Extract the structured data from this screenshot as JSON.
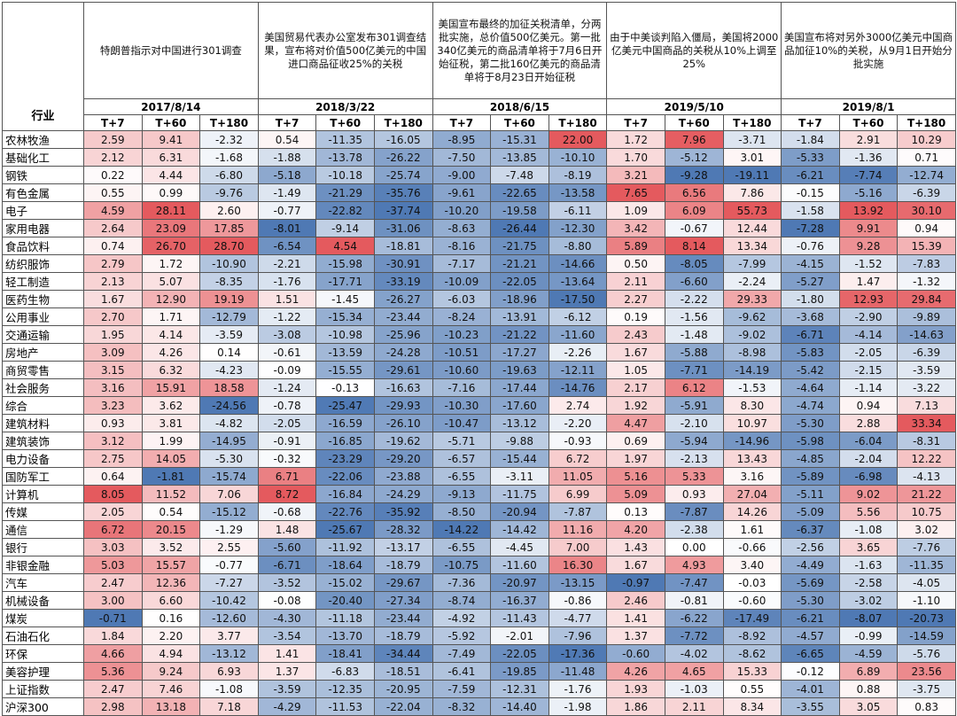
{
  "chart_data": {
    "type": "table",
    "row_header": "行业",
    "horizons": [
      "T+7",
      "T+60",
      "T+180"
    ],
    "events": [
      {
        "date": "2017/8/14",
        "description": "特朗普指示对中国进行301调查"
      },
      {
        "date": "2018/3/22",
        "description": "美国贸易代表办公室发布301调查结果，宣布将对价值500亿美元的中国进口商品征收25%的关税"
      },
      {
        "date": "2018/6/15",
        "description": "美国宣布最终的加征关税清单，分两批实施，总价值500亿美元。第一批340亿美元的商品清单将于7月6日开始征税，第二批160亿美元的商品清单将于8月23日开始征税"
      },
      {
        "date": "2019/5/10",
        "description": "由于中美谈判陷入僵局，美国将2000亿美元中国商品的关税从10%上调至25%"
      },
      {
        "date": "2019/8/1",
        "description": "美国宣布将对另外3000亿美元中国商品加征10%的关税，从9月1日开始分批实施"
      }
    ],
    "colors": {
      "positive": "#e45a5e",
      "negative": "#4f79b4",
      "neutral": "#ffffff"
    },
    "rows": [
      {
        "name": "农林牧渔",
        "values": [
          2.59,
          9.41,
          -2.32,
          0.54,
          -11.35,
          -16.05,
          -8.95,
          -15.31,
          22.0,
          1.72,
          7.96,
          -3.71,
          -1.84,
          2.91,
          10.29
        ]
      },
      {
        "name": "基础化工",
        "values": [
          2.12,
          6.31,
          -1.68,
          -1.88,
          -13.78,
          -26.22,
          -7.5,
          -13.85,
          -10.1,
          1.7,
          -5.12,
          3.01,
          -5.33,
          -1.36,
          0.71
        ]
      },
      {
        "name": "钢铁",
        "values": [
          0.22,
          4.44,
          -6.8,
          -5.18,
          -10.18,
          -25.74,
          -9.0,
          -7.48,
          -8.19,
          3.21,
          -9.28,
          -19.11,
          -6.21,
          -7.74,
          -12.74
        ]
      },
      {
        "name": "有色金属",
        "values": [
          0.55,
          0.99,
          -9.76,
          -1.49,
          -21.29,
          -35.76,
          -9.61,
          -22.65,
          -13.58,
          7.65,
          6.56,
          7.86,
          -0.15,
          -5.16,
          -6.39
        ]
      },
      {
        "name": "电子",
        "values": [
          4.59,
          28.11,
          2.6,
          -0.77,
          -22.82,
          -37.74,
          -10.2,
          -19.58,
          -6.11,
          1.09,
          6.09,
          55.73,
          -1.58,
          13.92,
          30.1
        ]
      },
      {
        "name": "家用电器",
        "values": [
          2.64,
          23.09,
          17.85,
          -8.01,
          -9.14,
          -31.06,
          -8.63,
          -26.44,
          -12.3,
          3.42,
          -0.67,
          12.44,
          -7.28,
          9.91,
          0.94
        ]
      },
      {
        "name": "食品饮料",
        "values": [
          0.74,
          26.7,
          28.7,
          -6.54,
          4.54,
          -18.81,
          -8.16,
          -21.75,
          -8.8,
          5.89,
          8.14,
          13.34,
          -0.76,
          9.28,
          15.39
        ]
      },
      {
        "name": "纺织服饰",
        "values": [
          2.79,
          1.72,
          -10.9,
          -2.21,
          -15.98,
          -30.91,
          -7.17,
          -21.21,
          -14.66,
          0.5,
          -8.05,
          -7.99,
          -4.15,
          -1.52,
          -7.83
        ]
      },
      {
        "name": "轻工制造",
        "values": [
          2.13,
          5.07,
          -8.35,
          -1.76,
          -17.71,
          -33.19,
          -10.09,
          -22.05,
          -13.64,
          2.11,
          -6.6,
          -2.24,
          -5.27,
          1.47,
          -1.32
        ]
      },
      {
        "name": "医药生物",
        "values": [
          1.67,
          12.9,
          19.19,
          1.51,
          -1.45,
          -26.27,
          -6.03,
          -18.96,
          -17.5,
          2.27,
          -2.22,
          29.33,
          -1.8,
          12.93,
          29.84
        ]
      },
      {
        "name": "公用事业",
        "values": [
          2.7,
          1.71,
          -12.79,
          -1.22,
          -15.34,
          -23.44,
          -8.24,
          -13.91,
          -6.12,
          0.19,
          -1.56,
          -9.62,
          -3.68,
          -2.9,
          -9.89
        ]
      },
      {
        "name": "交通运输",
        "values": [
          1.95,
          4.14,
          -3.59,
          -3.08,
          -10.98,
          -25.96,
          -10.23,
          -21.22,
          -11.6,
          2.43,
          -1.48,
          -9.02,
          -6.71,
          -4.14,
          -14.63
        ]
      },
      {
        "name": "房地产",
        "values": [
          3.09,
          4.26,
          0.14,
          -0.61,
          -13.59,
          -24.28,
          -10.51,
          -17.27,
          -2.26,
          1.67,
          -5.88,
          -8.98,
          -5.83,
          -2.05,
          -6.39
        ]
      },
      {
        "name": "商贸零售",
        "values": [
          3.15,
          6.32,
          -4.23,
          -0.09,
          -15.55,
          -29.61,
          -10.6,
          -19.63,
          -12.11,
          1.05,
          -7.71,
          -14.19,
          -5.42,
          -2.15,
          -3.59
        ]
      },
      {
        "name": "社会服务",
        "values": [
          3.16,
          15.91,
          18.58,
          -1.24,
          -0.13,
          -16.63,
          -7.16,
          -17.44,
          -14.76,
          2.17,
          6.12,
          -1.53,
          -4.64,
          -1.14,
          -3.22
        ]
      },
      {
        "name": "综合",
        "values": [
          3.23,
          3.62,
          -24.56,
          -0.78,
          -25.47,
          -29.93,
          -10.3,
          -17.6,
          2.74,
          1.92,
          -5.91,
          8.3,
          -4.74,
          0.94,
          7.13
        ]
      },
      {
        "name": "建筑材料",
        "values": [
          0.93,
          3.81,
          -4.82,
          -2.05,
          -16.59,
          -26.1,
          -10.47,
          -13.12,
          -2.2,
          4.47,
          -2.1,
          10.97,
          -5.3,
          2.88,
          33.34
        ]
      },
      {
        "name": "建筑装饰",
        "values": [
          3.12,
          1.99,
          -14.95,
          -0.91,
          -16.85,
          -19.62,
          -5.71,
          -9.88,
          -0.93,
          0.69,
          -5.94,
          -14.96,
          -5.98,
          -6.04,
          -8.31
        ]
      },
      {
        "name": "电力设备",
        "values": [
          2.75,
          14.05,
          -5.3,
          -0.32,
          -23.29,
          -29.2,
          -6.57,
          -15.44,
          6.72,
          1.97,
          -2.13,
          13.43,
          -4.85,
          -2.04,
          12.22
        ]
      },
      {
        "name": "国防军工",
        "values": [
          0.64,
          -1.81,
          -15.74,
          6.71,
          -22.06,
          -23.88,
          -6.55,
          -3.11,
          11.05,
          5.16,
          5.33,
          3.16,
          -5.89,
          -6.98,
          -4.13
        ]
      },
      {
        "name": "计算机",
        "values": [
          8.05,
          11.52,
          7.06,
          8.72,
          -16.84,
          -24.29,
          -9.13,
          -11.75,
          6.99,
          5.09,
          0.93,
          27.04,
          -5.11,
          9.02,
          21.22
        ]
      },
      {
        "name": "传媒",
        "values": [
          2.05,
          0.54,
          -15.12,
          -0.68,
          -22.76,
          -35.92,
          -8.5,
          -20.94,
          -7.87,
          0.13,
          -7.87,
          14.26,
          -5.09,
          5.56,
          10.75
        ]
      },
      {
        "name": "通信",
        "values": [
          6.72,
          20.15,
          -1.29,
          1.48,
          -25.67,
          -28.32,
          -14.22,
          -14.42,
          11.16,
          4.2,
          -2.38,
          1.61,
          -6.37,
          -1.08,
          3.02
        ]
      },
      {
        "name": "银行",
        "values": [
          3.03,
          3.52,
          2.55,
          -5.6,
          -11.92,
          -13.17,
          -6.55,
          -4.45,
          7.0,
          1.43,
          0.0,
          -0.66,
          -2.56,
          3.65,
          -7.76
        ]
      },
      {
        "name": "非银金融",
        "values": [
          5.03,
          15.57,
          -0.77,
          -6.71,
          -18.64,
          -18.79,
          -10.75,
          -11.6,
          16.3,
          1.67,
          4.93,
          3.4,
          -4.49,
          -1.63,
          -11.35
        ]
      },
      {
        "name": "汽车",
        "values": [
          2.47,
          12.36,
          -7.27,
          -3.52,
          -15.02,
          -29.67,
          -7.36,
          -20.97,
          -13.15,
          -0.97,
          -7.47,
          -0.03,
          -5.69,
          -2.58,
          -4.05
        ]
      },
      {
        "name": "机械设备",
        "values": [
          3.0,
          6.6,
          -10.42,
          -0.08,
          -20.4,
          -27.34,
          -8.74,
          -16.37,
          -0.86,
          2.46,
          -0.81,
          -0.6,
          -5.3,
          -3.02,
          -1.1
        ]
      },
      {
        "name": "煤炭",
        "values": [
          -0.71,
          0.16,
          -12.6,
          -4.3,
          -11.18,
          -23.44,
          -4.92,
          -11.43,
          -4.77,
          1.41,
          -6.22,
          -17.49,
          -6.21,
          -8.07,
          -20.73
        ]
      },
      {
        "name": "石油石化",
        "values": [
          1.84,
          2.2,
          3.77,
          -3.54,
          -13.7,
          -18.79,
          -5.92,
          -2.01,
          -7.96,
          1.37,
          -7.72,
          -8.92,
          -4.57,
          -0.99,
          -14.59
        ]
      },
      {
        "name": "环保",
        "values": [
          4.66,
          4.94,
          -13.12,
          1.41,
          -18.41,
          -34.44,
          -7.49,
          -22.05,
          -17.36,
          -0.6,
          -4.02,
          -8.62,
          -6.65,
          -4.59,
          -5.76
        ]
      },
      {
        "name": "美容护理",
        "values": [
          5.36,
          9.24,
          6.93,
          1.37,
          -6.83,
          -18.51,
          -6.41,
          -19.85,
          -11.48,
          4.26,
          4.65,
          15.33,
          -0.12,
          6.89,
          23.56
        ]
      },
      {
        "name": "上证指数",
        "values": [
          2.47,
          7.46,
          -1.08,
          -3.59,
          -12.35,
          -20.95,
          -7.59,
          -12.31,
          -1.76,
          1.93,
          -1.03,
          0.55,
          -4.01,
          0.88,
          -3.75
        ]
      },
      {
        "name": "沪深300",
        "values": [
          2.98,
          13.18,
          7.18,
          -4.29,
          -11.53,
          -22.04,
          -8.32,
          -14.4,
          -1.98,
          1.86,
          2.11,
          8.34,
          -3.55,
          3.05,
          0.83
        ]
      }
    ]
  }
}
